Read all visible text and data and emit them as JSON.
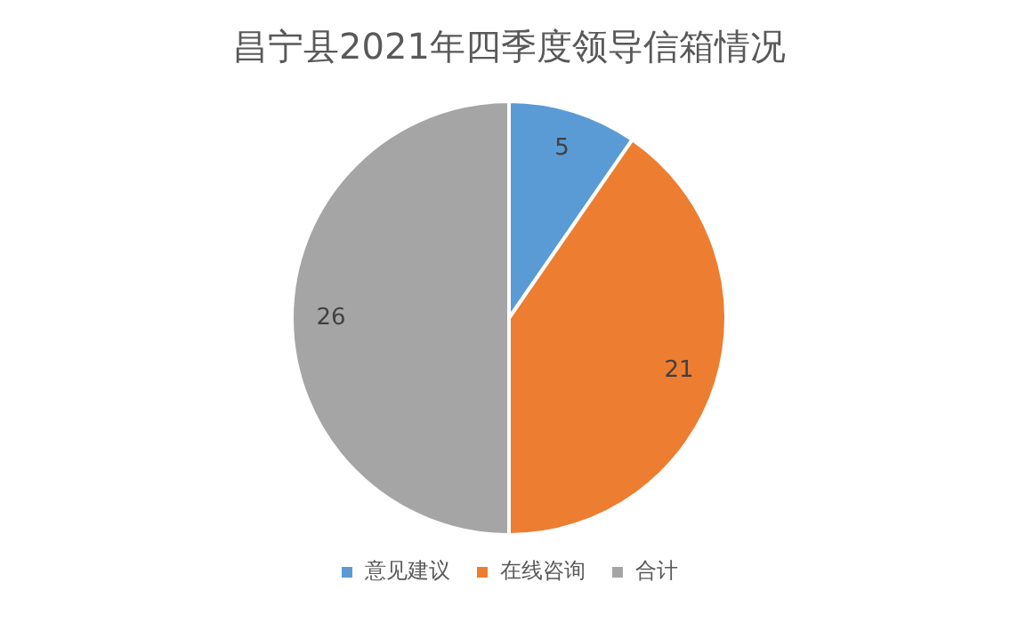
{
  "chart_data": {
    "type": "pie",
    "title": "昌宁县2021年四季度领导信箱情况",
    "categories": [
      "意见建议",
      "在线咨询",
      "合计"
    ],
    "values": [
      5,
      21,
      26
    ],
    "colors": [
      "#5b9bd5",
      "#ed7d31",
      "#a5a5a5"
    ],
    "data_labels": true,
    "legend": "bottom"
  }
}
